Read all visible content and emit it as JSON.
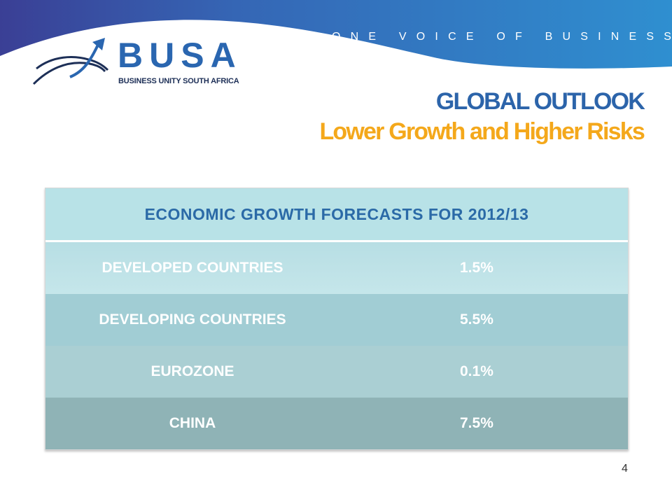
{
  "header": {
    "tagline": "ONE VOICE OF BUSINESS",
    "logo_text": "BUSA",
    "logo_subtitle": "BUSINESS UNITY SOUTH AFRICA"
  },
  "title": {
    "main": "GLOBAL OUTLOOK",
    "subtitle": "Lower Growth and Higher Risks"
  },
  "table": {
    "heading": "ECONOMIC  GROWTH FORECASTS FOR 2012/13",
    "rows": [
      {
        "name": "DEVELOPED COUNTRIES",
        "value": "1.5%"
      },
      {
        "name": "DEVELOPING COUNTRIES",
        "value": "5.5%"
      },
      {
        "name": "EUROZONE",
        "value": "0.1%"
      },
      {
        "name": "CHINA",
        "value": "7.5%"
      }
    ]
  },
  "footer": {
    "page_number": "4"
  },
  "colors": {
    "brand_blue": "#2c64aa",
    "brand_orange": "#f4a81b",
    "banner_purple": "#3b4aa0",
    "banner_blue": "#2e86c8"
  }
}
